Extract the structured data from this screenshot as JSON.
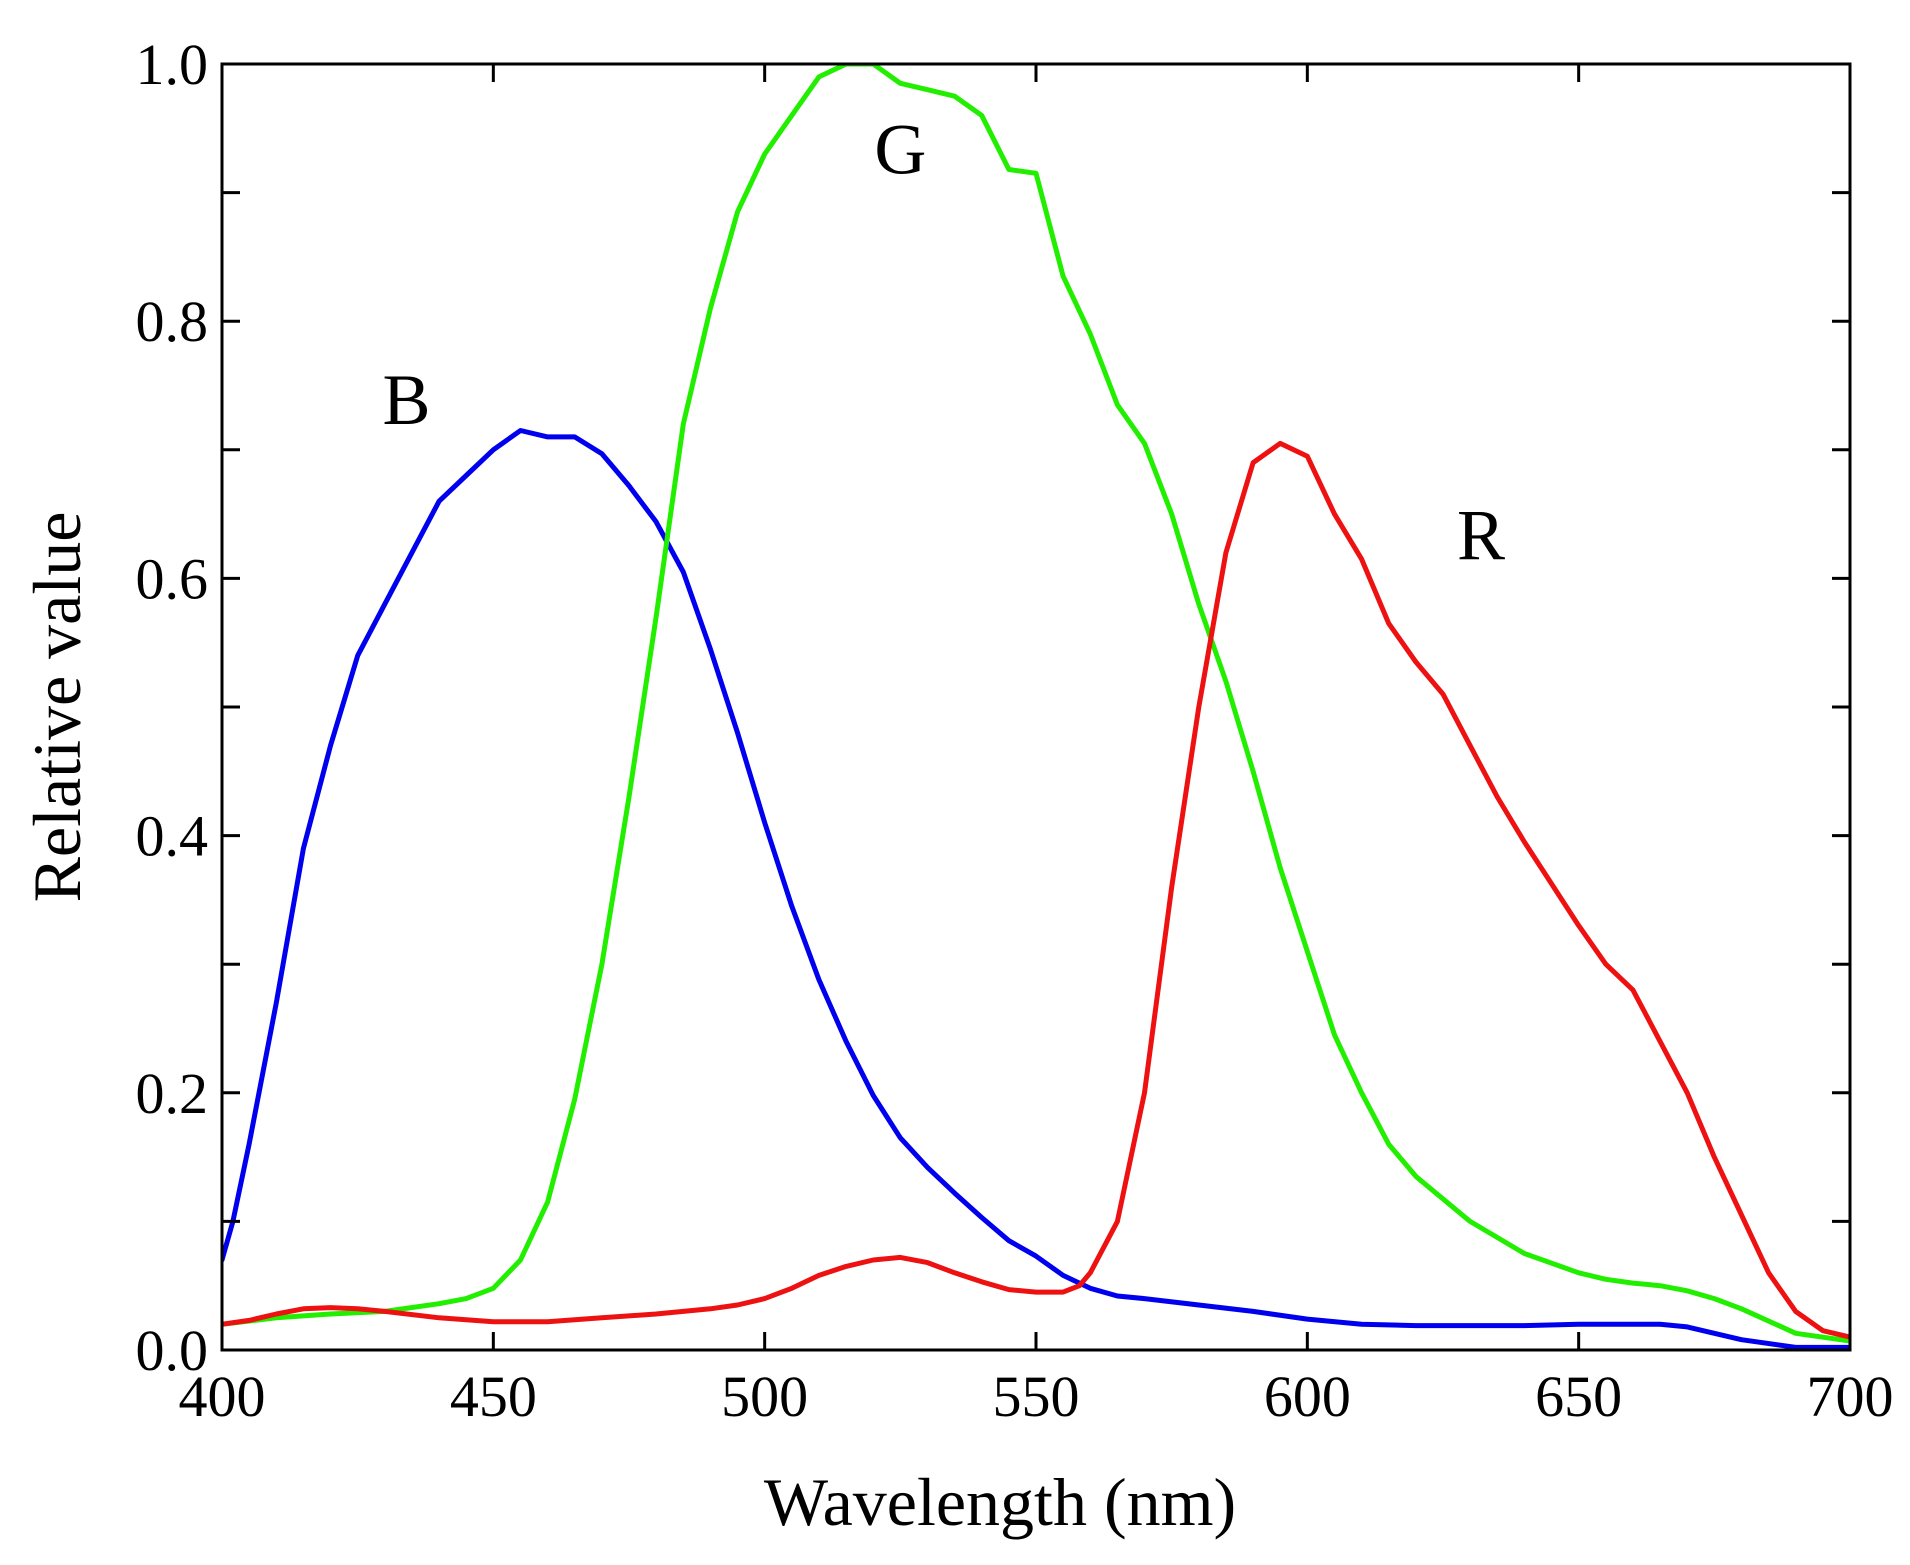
{
  "chart_data": {
    "type": "line",
    "title": "",
    "xlabel": "Wavelength (nm)",
    "ylabel": "Relative value",
    "xlim": [
      400,
      700
    ],
    "ylim": [
      0.0,
      1.0
    ],
    "xticks": [
      400,
      450,
      500,
      550,
      600,
      650,
      700
    ],
    "xtick_labels": [
      "400",
      "450",
      "500",
      "550",
      "600",
      "650",
      "700"
    ],
    "yticks": [
      0.0,
      0.2,
      0.4,
      0.6,
      0.8,
      1.0
    ],
    "ytick_labels": [
      "0.0",
      "0.2",
      "0.4",
      "0.6",
      "0.8",
      "1.0"
    ],
    "grid": false,
    "series": [
      {
        "name": "B",
        "color": "#0000ee",
        "x": [
          400,
          402,
          405,
          410,
          415,
          420,
          425,
          430,
          435,
          440,
          445,
          450,
          455,
          460,
          465,
          470,
          475,
          480,
          485,
          490,
          495,
          500,
          505,
          510,
          515,
          520,
          525,
          530,
          535,
          540,
          545,
          550,
          555,
          560,
          565,
          570,
          580,
          590,
          600,
          610,
          620,
          630,
          640,
          650,
          660,
          665,
          670,
          675,
          680,
          690,
          700
        ],
        "y": [
          0.07,
          0.1,
          0.16,
          0.27,
          0.39,
          0.47,
          0.54,
          0.58,
          0.62,
          0.66,
          0.68,
          0.7,
          0.715,
          0.71,
          0.71,
          0.697,
          0.672,
          0.644,
          0.605,
          0.545,
          0.48,
          0.41,
          0.345,
          0.288,
          0.24,
          0.198,
          0.165,
          0.142,
          0.122,
          0.103,
          0.085,
          0.073,
          0.058,
          0.048,
          0.042,
          0.04,
          0.035,
          0.03,
          0.024,
          0.02,
          0.019,
          0.019,
          0.019,
          0.02,
          0.02,
          0.02,
          0.018,
          0.013,
          0.008,
          0.002,
          0.002
        ]
      },
      {
        "name": "G",
        "color": "#22ee00",
        "x": [
          400,
          410,
          420,
          430,
          440,
          445,
          450,
          455,
          460,
          465,
          470,
          475,
          480,
          485,
          490,
          495,
          500,
          505,
          510,
          515,
          520,
          525,
          530,
          535,
          540,
          545,
          550,
          555,
          560,
          565,
          570,
          575,
          580,
          585,
          590,
          595,
          600,
          605,
          610,
          615,
          620,
          630,
          640,
          650,
          655,
          660,
          665,
          670,
          675,
          680,
          690,
          700
        ],
        "y": [
          0.02,
          0.025,
          0.028,
          0.03,
          0.036,
          0.04,
          0.048,
          0.07,
          0.115,
          0.195,
          0.3,
          0.43,
          0.57,
          0.72,
          0.81,
          0.885,
          0.93,
          0.96,
          0.99,
          1.0,
          1.0,
          0.985,
          0.98,
          0.975,
          0.96,
          0.918,
          0.915,
          0.835,
          0.79,
          0.735,
          0.705,
          0.65,
          0.58,
          0.52,
          0.45,
          0.375,
          0.31,
          0.245,
          0.2,
          0.16,
          0.135,
          0.1,
          0.075,
          0.06,
          0.055,
          0.052,
          0.05,
          0.046,
          0.04,
          0.032,
          0.013,
          0.007
        ]
      },
      {
        "name": "R",
        "color": "#ee1111",
        "x": [
          400,
          405,
          410,
          415,
          420,
          425,
          430,
          440,
          450,
          460,
          470,
          480,
          490,
          495,
          500,
          505,
          510,
          515,
          520,
          525,
          530,
          535,
          540,
          545,
          550,
          555,
          558,
          560,
          565,
          570,
          575,
          580,
          585,
          590,
          595,
          600,
          605,
          610,
          615,
          620,
          625,
          630,
          635,
          640,
          650,
          655,
          660,
          665,
          670,
          675,
          680,
          685,
          690,
          695,
          700
        ],
        "y": [
          0.02,
          0.023,
          0.028,
          0.032,
          0.033,
          0.032,
          0.03,
          0.025,
          0.022,
          0.022,
          0.025,
          0.028,
          0.032,
          0.035,
          0.04,
          0.048,
          0.058,
          0.065,
          0.07,
          0.072,
          0.068,
          0.06,
          0.053,
          0.047,
          0.045,
          0.045,
          0.05,
          0.06,
          0.1,
          0.2,
          0.36,
          0.5,
          0.62,
          0.69,
          0.705,
          0.695,
          0.65,
          0.615,
          0.565,
          0.535,
          0.51,
          0.47,
          0.43,
          0.395,
          0.33,
          0.3,
          0.28,
          0.24,
          0.2,
          0.15,
          0.105,
          0.06,
          0.03,
          0.015,
          0.01
        ]
      }
    ],
    "annotations": [
      {
        "text": "B",
        "x": 434,
        "y": 0.72
      },
      {
        "text": "G",
        "x": 525,
        "y": 0.915
      },
      {
        "text": "R",
        "x": 632,
        "y": 0.615
      }
    ]
  }
}
